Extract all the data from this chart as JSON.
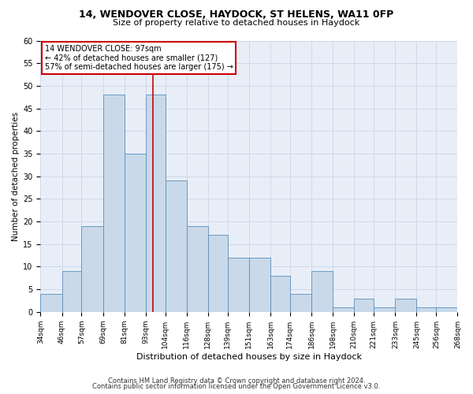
{
  "title_line1": "14, WENDOVER CLOSE, HAYDOCK, ST HELENS, WA11 0FP",
  "title_line2": "Size of property relative to detached houses in Haydock",
  "xlabel": "Distribution of detached houses by size in Haydock",
  "ylabel": "Number of detached properties",
  "footnote1": "Contains HM Land Registry data © Crown copyright and database right 2024.",
  "footnote2": "Contains public sector information licensed under the Open Government Licence v3.0.",
  "annotation_line1": "14 WENDOVER CLOSE: 97sqm",
  "annotation_line2": "← 42% of detached houses are smaller (127)",
  "annotation_line3": "57% of semi-detached houses are larger (175) →",
  "property_size": 97,
  "bar_color": "#c9d9ea",
  "bar_edge_color": "#5a8fbb",
  "redline_x": 97,
  "bins": [
    34,
    46,
    57,
    69,
    81,
    93,
    104,
    116,
    128,
    139,
    151,
    163,
    174,
    186,
    198,
    210,
    221,
    233,
    245,
    256,
    268
  ],
  "values": [
    4,
    9,
    19,
    48,
    35,
    48,
    29,
    19,
    17,
    12,
    12,
    8,
    4,
    9,
    1,
    3,
    1,
    3,
    1,
    1
  ],
  "ylim": [
    0,
    60
  ],
  "yticks": [
    0,
    5,
    10,
    15,
    20,
    25,
    30,
    35,
    40,
    45,
    50,
    55,
    60
  ],
  "grid_color": "#d0d8e8",
  "bg_color": "#e8eef8",
  "annotation_box_color": "#ffffff",
  "annotation_box_edge": "#cc0000",
  "redline_color": "#cc0000",
  "title1_fontsize": 9,
  "title2_fontsize": 8,
  "ylabel_fontsize": 7.5,
  "xlabel_fontsize": 8,
  "footnote_fontsize": 6,
  "ann_fontsize": 7,
  "ytick_fontsize": 7,
  "xtick_fontsize": 6.5
}
